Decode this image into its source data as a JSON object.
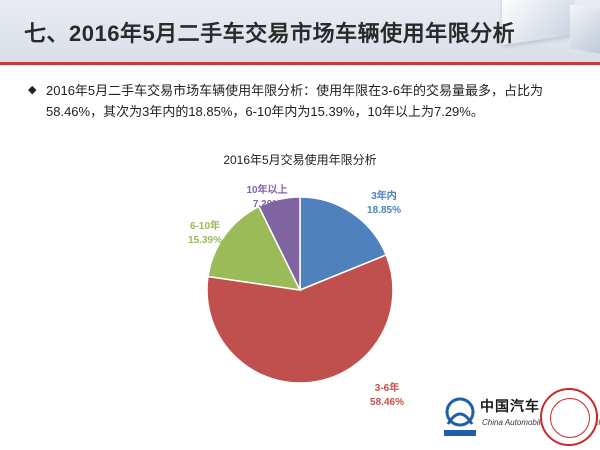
{
  "page": {
    "title": "七、2016年5月二手车交易市场车辆使用年限分析"
  },
  "summary": {
    "bullet": "◆",
    "text": "2016年5月二手车交易市场车辆使用年限分析：使用年限在3-6年的交易量最多，占比为58.46%，其次为3年内的18.85%，6-10年内为15.39%，10年以上为7.29%。"
  },
  "chart_data": {
    "type": "pie",
    "title": "2016年5月交易使用年限分析",
    "unit": "%",
    "categories": [
      "3年内",
      "3-6年",
      "6-10年",
      "10年以上"
    ],
    "values": [
      18.85,
      58.46,
      15.39,
      7.29
    ],
    "value_labels": [
      "18.85%",
      "58.46%",
      "15.39%",
      "7.29%"
    ],
    "colors": [
      "#4f81bd",
      "#c0504d",
      "#9bbb59",
      "#8064a2"
    ],
    "start": "12 o'clock",
    "direction": "clockwise",
    "legend": "none",
    "labels": "outside"
  },
  "logo": {
    "brand_cn": "中国汽车",
    "brand_en": "China Automobile Dealers Association"
  }
}
